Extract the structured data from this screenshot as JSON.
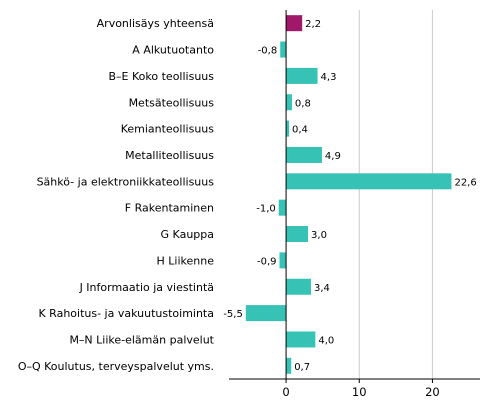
{
  "chart_data": {
    "type": "bar",
    "orientation": "horizontal",
    "categories": [
      "Arvonlisäys yhteensä",
      "A Alkutuotanto",
      "B–E Koko teollisuus",
      "Metsäteollisuus",
      "Kemianteollisuus",
      "Metalliteollisuus",
      "Sähkö- ja elektroniikkateollisuus",
      "F Rakentaminen",
      "G Kauppa",
      "H Liikenne",
      "J Informaatio ja viestintä",
      "K Rahoitus- ja vakuutustoiminta",
      "M–N Liike-elämän palvelut",
      "O–Q Koulutus, terveyspalvelut yms."
    ],
    "values": [
      2.2,
      -0.8,
      4.3,
      0.8,
      0.4,
      4.9,
      22.6,
      -1.0,
      3.0,
      -0.9,
      3.4,
      -5.5,
      4.0,
      0.7
    ],
    "value_labels": [
      "2,2",
      "-0,8",
      "4,3",
      "0,8",
      "0,4",
      "4,9",
      "22,6",
      "-1,0",
      "3,0",
      "-0,9",
      "3,4",
      "-5,5",
      "4,0",
      "0,7"
    ],
    "xlim": [
      -7.8,
      26.5
    ],
    "xticks": [
      0,
      10,
      20
    ],
    "xtick_labels": [
      "0",
      "10",
      "20"
    ],
    "grid": "vertical",
    "colors": {
      "highlight": "#a0186a",
      "bar": "#36c2b4",
      "grid": "#cccccc",
      "axis": "#000000"
    },
    "highlight_index": 0,
    "title": "",
    "xlabel": "",
    "ylabel": ""
  }
}
